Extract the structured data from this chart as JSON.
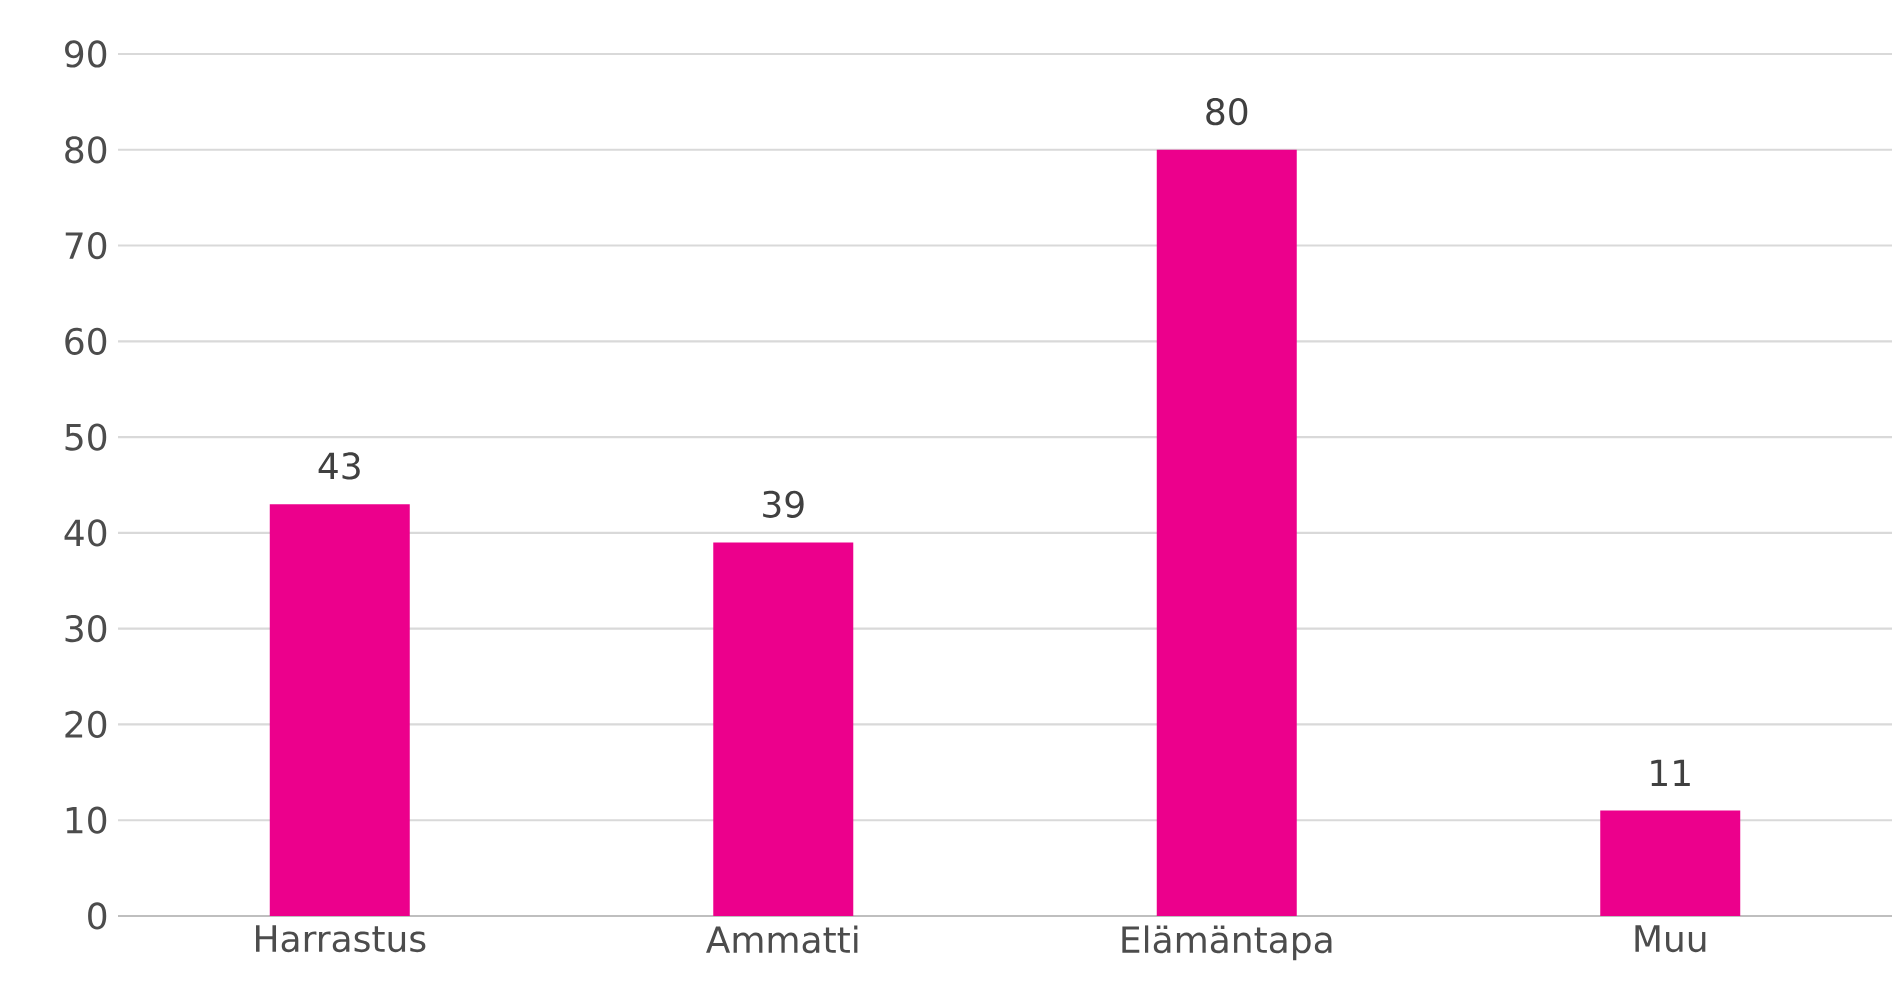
{
  "chart_data": {
    "type": "bar",
    "categories": [
      "Harrastus",
      "Ammatti",
      "Elämäntapa",
      "Muu"
    ],
    "values": [
      43,
      39,
      80,
      11
    ],
    "color": "#ec008c",
    "ylim": [
      0,
      90
    ],
    "yticks": [
      0,
      10,
      20,
      30,
      40,
      50,
      60,
      70,
      80,
      90
    ],
    "grid": "y",
    "data_labels": true
  }
}
